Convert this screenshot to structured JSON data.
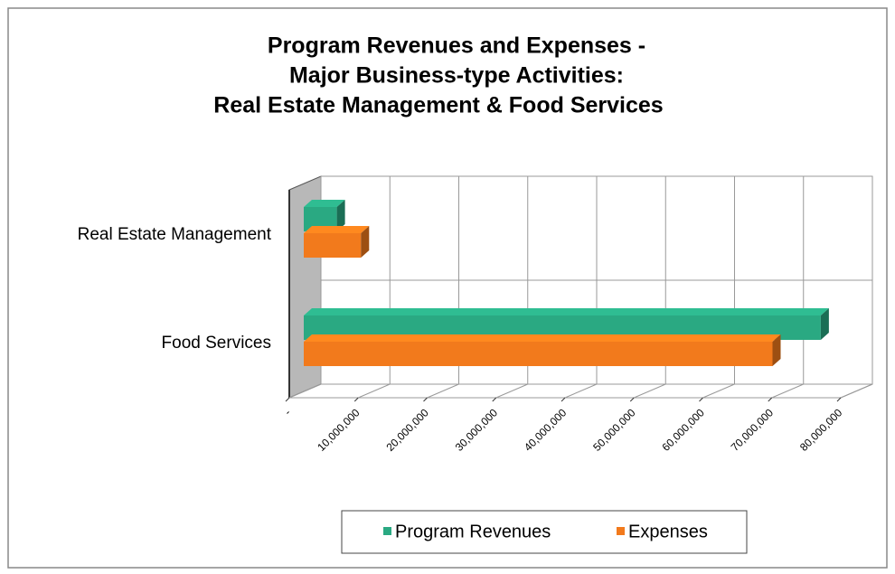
{
  "chart_data": {
    "type": "bar3d",
    "title": [
      "Program Revenues and Expenses -",
      "Major Business-type Activities:",
      "Real Estate Management & Food Services"
    ],
    "orientation": "horizontal",
    "categories": [
      "Real Estate Management",
      "Food Services"
    ],
    "series": [
      {
        "name": "Program Revenues",
        "color": "#2aa982",
        "values": [
          4800000,
          75000000
        ]
      },
      {
        "name": "Expenses",
        "color": "#f27a1c",
        "values": [
          8300000,
          68000000
        ]
      }
    ],
    "xlim": [
      0,
      80000000
    ],
    "xticks": [
      {
        "value": 0,
        "label": "-"
      },
      {
        "value": 10000000,
        "label": "10,000,000"
      },
      {
        "value": 20000000,
        "label": "20,000,000"
      },
      {
        "value": 30000000,
        "label": "30,000,000"
      },
      {
        "value": 40000000,
        "label": "40,000,000"
      },
      {
        "value": 50000000,
        "label": "50,000,000"
      },
      {
        "value": 60000000,
        "label": "60,000,000"
      },
      {
        "value": 70000000,
        "label": "70,000,000"
      },
      {
        "value": 80000000,
        "label": "80,000,000"
      }
    ],
    "grid": true,
    "legend": "bottom"
  }
}
